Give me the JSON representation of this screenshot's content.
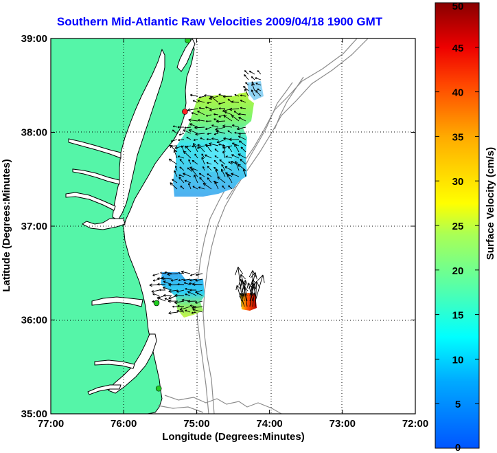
{
  "title": "Southern Mid-Atlantic Raw Velocities 2009/04/18 1900 GMT",
  "map": {
    "xlabel": "Longitude (Degrees:Minutes)",
    "ylabel": "Latitude (Degrees:Minutes)",
    "lon_range": [
      -77,
      -72
    ],
    "lat_range": [
      35,
      39
    ],
    "x_ticks": [
      {
        "value": -77,
        "label": "77:00"
      },
      {
        "value": -76,
        "label": "76:00"
      },
      {
        "value": -75,
        "label": "75:00"
      },
      {
        "value": -74,
        "label": "74:00"
      },
      {
        "value": -73,
        "label": "73:00"
      },
      {
        "value": -72,
        "label": "72:00"
      }
    ],
    "y_ticks": [
      {
        "value": 39,
        "label": "39:00"
      },
      {
        "value": 38,
        "label": "38:00"
      },
      {
        "value": 37,
        "label": "37:00"
      },
      {
        "value": 36,
        "label": "36:00"
      },
      {
        "value": 35,
        "label": "35:00"
      }
    ],
    "grid": "dotted",
    "land_color": "#55f5a8",
    "bathymetry_color": "#8c8c8c"
  },
  "colorbar": {
    "label": "Surface Velocity (cm/s)",
    "min": 0,
    "max": 50,
    "colormap": "jet",
    "ticks": [
      {
        "value": 50,
        "label": "50"
      },
      {
        "value": 45,
        "label": "45"
      },
      {
        "value": 40,
        "label": "40"
      },
      {
        "value": 35,
        "label": "35"
      },
      {
        "value": 30,
        "label": "30"
      },
      {
        "value": 25,
        "label": "25"
      },
      {
        "value": 20,
        "label": "20"
      },
      {
        "value": 15,
        "label": "15"
      },
      {
        "value": 10,
        "label": "10"
      },
      {
        "value": 5,
        "label": "5"
      },
      {
        "value": 0,
        "label": "0"
      }
    ]
  },
  "stations": [
    {
      "lon": -75.12,
      "lat": 38.98,
      "color": "#22cc22"
    },
    {
      "lon": -75.16,
      "lat": 38.22,
      "color": "#ff2222"
    },
    {
      "lon": -75.55,
      "lat": 36.18,
      "color": "#22cc22"
    },
    {
      "lon": -75.52,
      "lat": 35.27,
      "color": "#22cc22"
    }
  ]
}
